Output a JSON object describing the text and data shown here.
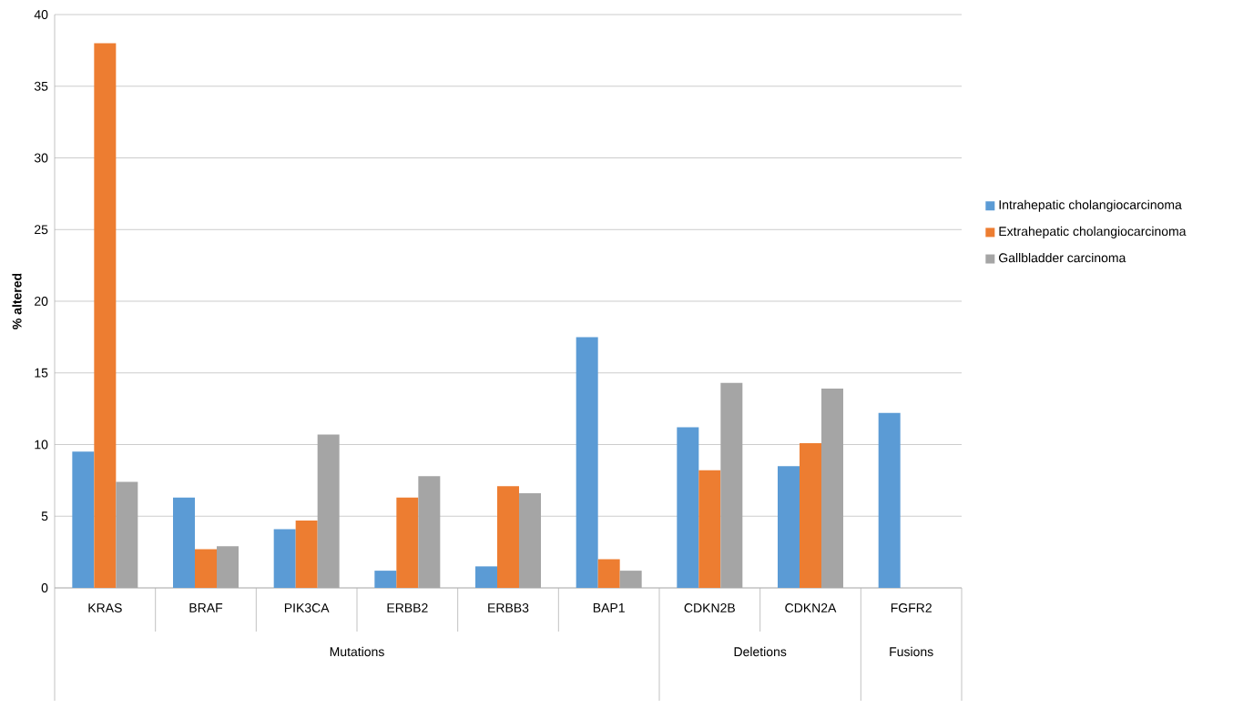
{
  "chart_data": {
    "type": "bar",
    "ylabel": "% altered",
    "categories": [
      "KRAS",
      "BRAF",
      "PIK3CA",
      "ERBB2",
      "ERBB3",
      "BAP1",
      "CDKN2B",
      "CDKN2A",
      "FGFR2"
    ],
    "series": [
      {
        "name": "Intrahepatic cholangiocarcinoma",
        "color": "#5b9bd5",
        "values": [
          9.5,
          6.3,
          4.1,
          1.2,
          1.5,
          17.5,
          11.2,
          8.5,
          12.2
        ]
      },
      {
        "name": "Extrahepatic cholangiocarcinoma",
        "color": "#ed7d31",
        "values": [
          38,
          2.7,
          4.7,
          6.3,
          7.1,
          2.0,
          8.2,
          10.1,
          null
        ]
      },
      {
        "name": "Gallbladder carcinoma",
        "color": "#a5a5a5",
        "values": [
          7.4,
          2.9,
          10.7,
          7.8,
          6.6,
          1.2,
          14.3,
          13.9,
          null
        ]
      }
    ],
    "annotations": [
      "Mutations",
      "Deletions",
      "Fusions"
    ],
    "ylim": [
      0,
      40
    ],
    "yticks": [
      0,
      5,
      10,
      15,
      20,
      25,
      30,
      35,
      40
    ],
    "grid": "y",
    "legend": "right"
  }
}
